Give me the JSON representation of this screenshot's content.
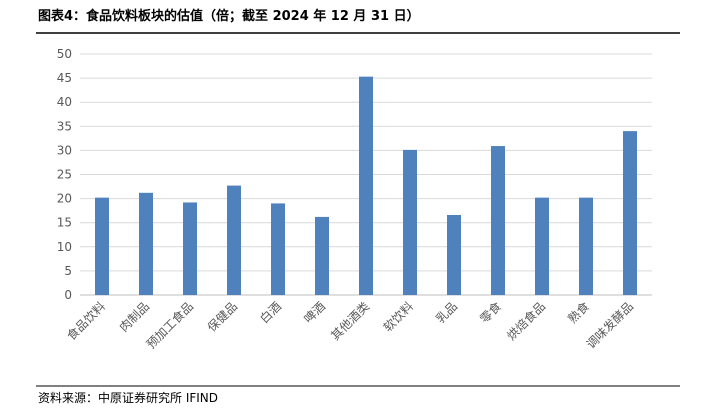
{
  "chart_data": {
    "type": "bar",
    "title": "图表4：食品饮料板块的估值（倍；截至 2024 年 12 月 31 日）",
    "source": "资料来源：中原证券研究所   IFIND",
    "categories": [
      "食品饮料",
      "肉制品",
      "预加工食品",
      "保健品",
      "白酒",
      "啤酒",
      "其他酒类",
      "软饮料",
      "乳品",
      "零食",
      "烘焙食品",
      "熟食",
      "调味发酵品"
    ],
    "values": [
      20.2,
      21.2,
      19.2,
      22.7,
      19.0,
      16.2,
      45.3,
      30.1,
      16.6,
      30.9,
      20.2,
      20.2,
      34.0
    ],
    "color": "#4f81bd",
    "ylim": [
      0,
      50
    ],
    "yticks": [
      0,
      5,
      10,
      15,
      20,
      25,
      30,
      35,
      40,
      45,
      50
    ],
    "grid": true
  }
}
